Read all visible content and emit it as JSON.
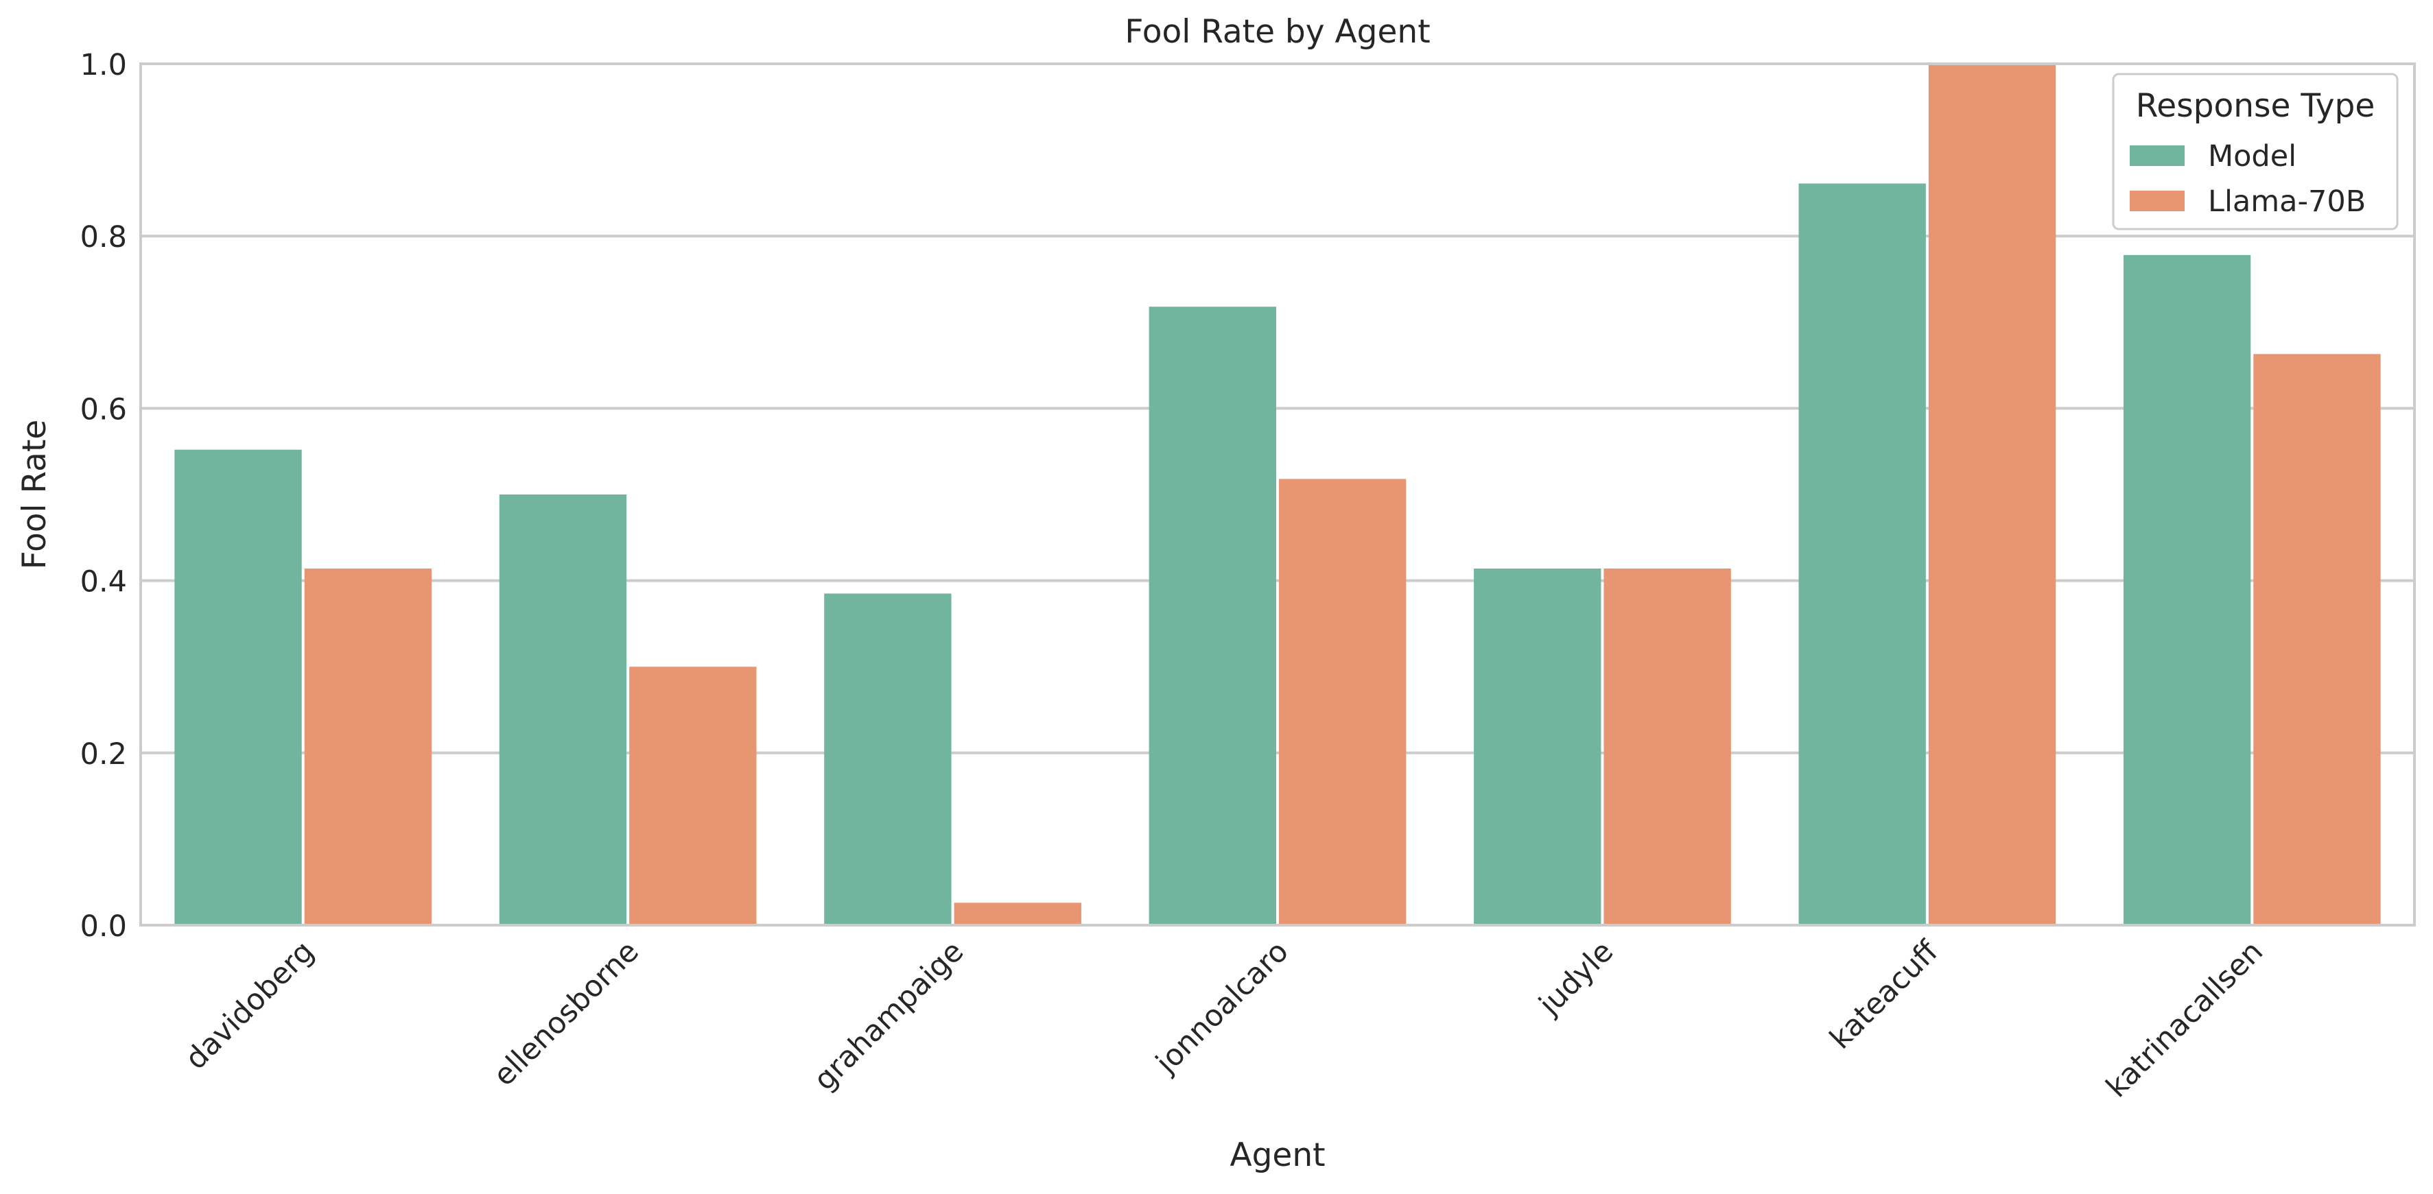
{
  "chart_data": {
    "type": "bar",
    "title": "Fool Rate by Agent",
    "xlabel": "Agent",
    "ylabel": "Fool Rate",
    "ylim": [
      0,
      1.0
    ],
    "yticks": [
      "0.0",
      "0.2",
      "0.4",
      "0.6",
      "0.8",
      "1.0"
    ],
    "grid": true,
    "categories": [
      "davidoberg",
      "ellenosborne",
      "grahampaige",
      "jonnoalcaro",
      "judyle",
      "kateacuff",
      "katrinacallsen"
    ],
    "series": [
      {
        "name": "Model",
        "color": "#72b59f",
        "values": [
          0.552,
          0.5,
          0.385,
          0.718,
          0.414,
          0.861,
          0.778
        ]
      },
      {
        "name": "Llama-70B",
        "color": "#e89672",
        "values": [
          0.414,
          0.3,
          0.026,
          0.518,
          0.414,
          1.0,
          0.663
        ]
      }
    ],
    "legend": {
      "title": "Response Type",
      "placement": "top-right"
    }
  }
}
